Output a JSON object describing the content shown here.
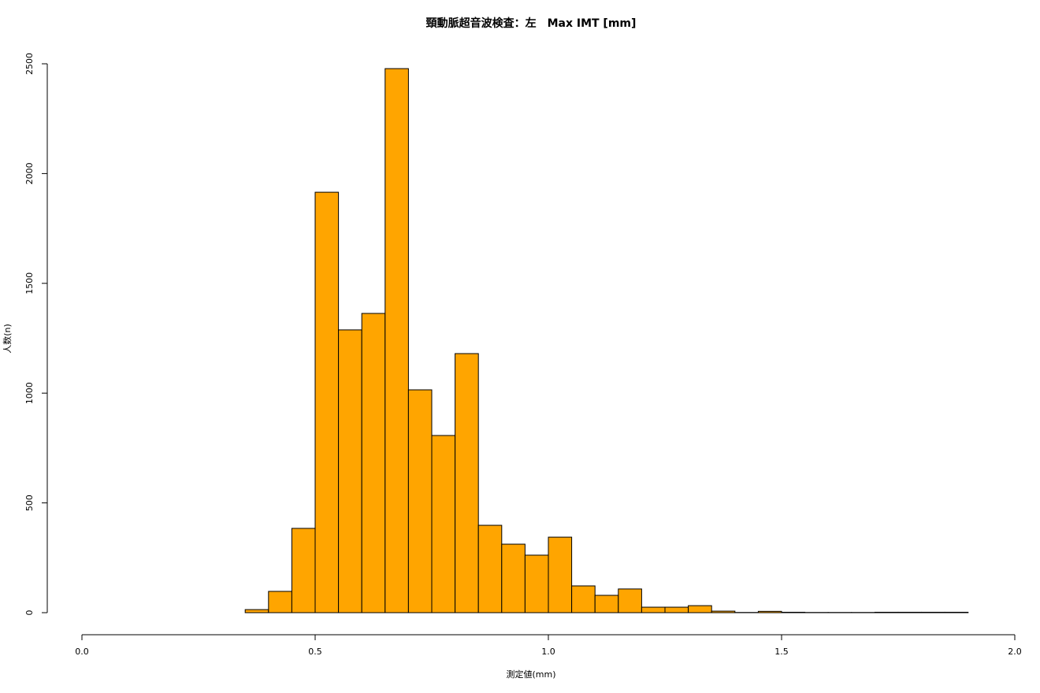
{
  "chart_data": {
    "type": "histogram",
    "title": "頸動脈超音波検査：左　Max IMT [mm]",
    "x_label": "測定値(mm)",
    "y_label": "人数(n)",
    "color": "#ffa500",
    "bins": [
      0.3,
      0.35,
      0.4,
      0.45,
      0.5,
      0.55,
      0.6,
      0.65,
      0.7,
      0.75,
      0.8,
      0.85,
      0.9,
      0.95,
      1.0,
      1.05,
      1.1,
      1.15,
      1.2,
      1.25,
      1.3,
      1.35,
      1.4,
      1.45,
      1.5,
      1.55,
      1.6,
      1.65,
      1.7,
      1.75,
      1.8,
      1.85,
      1.9,
      1.95
    ],
    "values": [
      0,
      14,
      97,
      384,
      1915,
      1288,
      1363,
      2478,
      1015,
      807,
      1180,
      398,
      312,
      262,
      344,
      122,
      79,
      108,
      25,
      25,
      32,
      7,
      1,
      6,
      2,
      1,
      1,
      1,
      2,
      2,
      2,
      2,
      0
    ],
    "xlim": [
      0,
      2
    ],
    "xticks": [
      {
        "value": 0,
        "label": "0.0"
      },
      {
        "value": 0.5,
        "label": "0.5"
      },
      {
        "value": 1,
        "label": "1.0"
      },
      {
        "value": 1.5,
        "label": "1.5"
      },
      {
        "value": 2,
        "label": "2.0"
      }
    ],
    "ylim": [
      0,
      2500
    ],
    "yticks": [
      0,
      500,
      1000,
      1500,
      2000,
      2500
    ]
  }
}
